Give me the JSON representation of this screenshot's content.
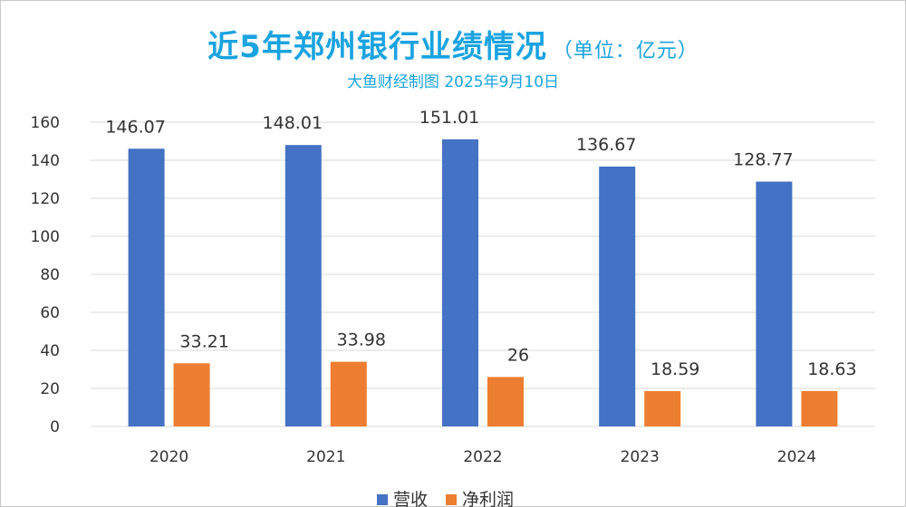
{
  "chart_data": {
    "type": "bar",
    "title": "近5年郑州银行业绩情况",
    "title_unit": "（单位：亿元）",
    "subtitle": "大鱼财经制图 2025年9月10日",
    "categories": [
      "2020",
      "2021",
      "2022",
      "2023",
      "2024"
    ],
    "series": [
      {
        "name": "营收",
        "color": "#4472c4",
        "values": [
          146.07,
          148.01,
          151.01,
          136.67,
          128.77
        ]
      },
      {
        "name": "净利润",
        "color": "#ed7d31",
        "values": [
          33.21,
          33.98,
          26,
          18.59,
          18.63
        ]
      }
    ],
    "ylim": [
      0,
      160
    ],
    "yticks": [
      "0",
      "20",
      "40",
      "60",
      "80",
      "100",
      "120",
      "140",
      "160"
    ],
    "grid": true,
    "legend_position": "bottom"
  }
}
